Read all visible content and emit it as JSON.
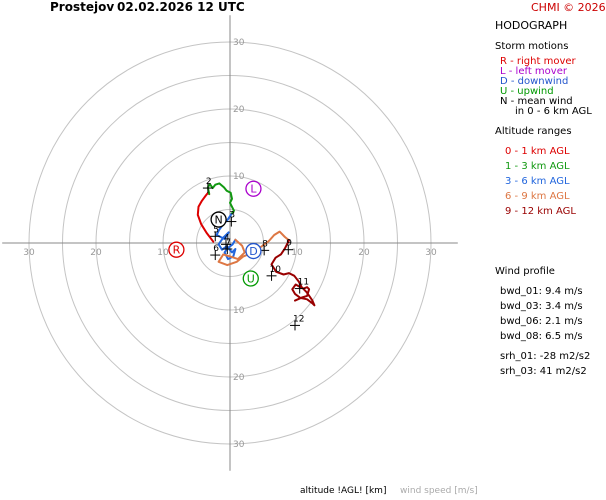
{
  "header": {
    "station": "Prostejov",
    "datetime": "02.02.2026 12 UTC",
    "credit": "CHMI © 2026",
    "credit_color": "#cc0000"
  },
  "panel": {
    "title": "HODOGRAPH",
    "storm_motions": {
      "heading": "Storm motions",
      "items": [
        {
          "text": "R - right mover",
          "color": "#dd0000"
        },
        {
          "text": "L - left mover",
          "color": "#aa00cc"
        },
        {
          "text": "D - downwind",
          "color": "#2255cc"
        },
        {
          "text": "U - upwind",
          "color": "#009900"
        },
        {
          "text": "N - mean wind",
          "color": "#000000"
        }
      ],
      "note": "in 0 - 6 km AGL"
    },
    "altitude": {
      "heading": "Altitude ranges",
      "items": [
        {
          "text": "0 - 1 km AGL",
          "color": "#dd0000"
        },
        {
          "text": "1 - 3 km AGL",
          "color": "#119911"
        },
        {
          "text": "3 - 6 km AGL",
          "color": "#2266dd"
        },
        {
          "text": "6 - 9 km AGL",
          "color": "#dd7744"
        },
        {
          "text": "9 - 12 km AGL",
          "color": "#990000"
        }
      ]
    },
    "wind_profile": {
      "heading": "Wind profile",
      "items": [
        "bwd_01: 9.4 m/s",
        "bwd_03: 3.4 m/s",
        "bwd_06: 2.1 m/s",
        "bwd_08: 6.5 m/s"
      ],
      "srh": [
        "srh_01: -28 m2/s2",
        "srh_03: 41 m2/s2"
      ]
    }
  },
  "footer": {
    "altitude_label": "altitude !AGL! [km]",
    "wind_label": "wind speed [m/s]",
    "wind_label_color": "#aaaaaa"
  },
  "chart_data": {
    "type": "line",
    "title": "HODOGRAPH",
    "xlabel": "",
    "ylabel": "",
    "xlim": [
      -34,
      34
    ],
    "ylim": [
      -34,
      34
    ],
    "rings": [
      5,
      10,
      15,
      20,
      25,
      30
    ],
    "ring_labels": [
      10,
      20,
      30
    ],
    "grid": true,
    "series": [
      {
        "name": "0 - 1 km AGL",
        "color": "#dd0000",
        "u": [
          -2.5,
          -3.5,
          -4.3,
          -4.8,
          -4.7,
          -4.2,
          -3.6,
          -3.2,
          -3.1
        ],
        "v": [
          0.2,
          1.5,
          2.8,
          4.2,
          5.4,
          6.3,
          7.1,
          7.6,
          7.3
        ]
      },
      {
        "name": "1 - 3 km AGL",
        "color": "#119911",
        "u": [
          -3.1,
          -3.3,
          -3.0,
          -2.6,
          -2.2,
          -1.6,
          -0.9,
          -0.5,
          0.1,
          0.3,
          0.0,
          0.3,
          0.6,
          0.2
        ],
        "v": [
          7.3,
          8.3,
          8.8,
          8.2,
          8.7,
          8.9,
          8.3,
          7.8,
          7.5,
          6.6,
          6.0,
          5.4,
          4.8,
          4.3
        ]
      },
      {
        "name": "3 - 6 km AGL",
        "color": "#2266dd",
        "u": [
          0.2,
          -0.4,
          -1.0,
          -1.6,
          -2.0,
          -0.8,
          -0.2,
          -1.0,
          -1.7,
          -1.2,
          -0.5,
          0.3,
          0.8,
          0.5,
          -0.3,
          -0.8,
          -0.4,
          0.4,
          0.8
        ],
        "v": [
          4.3,
          3.4,
          2.8,
          2.0,
          1.2,
          0.6,
          1.6,
          0.8,
          -0.2,
          -1.0,
          -0.5,
          -1.4,
          -0.9,
          -2.0,
          -2.4,
          -1.4,
          -0.8,
          -0.2,
          0.5
        ]
      },
      {
        "name": "6 - 9 km AGL",
        "color": "#dd7744",
        "u": [
          0.8,
          1.8,
          2.2,
          1.2,
          0.3,
          -1.0,
          -1.7,
          -0.4,
          1.0,
          2.0,
          3.2,
          4.6,
          5.8,
          6.6,
          7.4,
          8.2,
          8.8
        ],
        "v": [
          0.5,
          -0.4,
          -1.4,
          -2.4,
          -2.1,
          -1.7,
          -2.8,
          -3.3,
          -2.8,
          -2.0,
          -1.5,
          -0.6,
          0.3,
          1.2,
          1.7,
          0.9,
          0.4
        ]
      },
      {
        "name": "9 - 12 km AGL",
        "color": "#990000",
        "u": [
          8.8,
          8.2,
          7.6,
          6.8,
          6.2,
          6.9,
          8.0,
          8.8,
          9.6,
          10.3,
          10.7,
          11.4,
          11.9,
          12.3,
          12.6,
          12.3,
          11.5,
          10.5,
          9.7,
          9.3,
          9.8,
          10.5,
          11.0,
          11.5,
          11.8,
          11.5,
          10.8,
          9.7
        ],
        "v": [
          0.4,
          -0.8,
          -1.7,
          -2.2,
          -3.2,
          -4.3,
          -4.7,
          -4.5,
          -4.9,
          -5.8,
          -6.6,
          -7.3,
          -8.0,
          -8.6,
          -9.3,
          -9.0,
          -8.4,
          -8.2,
          -7.6,
          -6.9,
          -6.2,
          -6.6,
          -6.8,
          -6.6,
          -6.9,
          -7.9,
          -8.1,
          -8.6
        ]
      }
    ],
    "altitude_marks": [
      {
        "label": "2",
        "u": -3.3,
        "v": 8.2
      },
      {
        "label": "3",
        "u": 0.2,
        "v": 3.2
      },
      {
        "label": "4",
        "u": -0.6,
        "v": -0.2
      },
      {
        "label": "5",
        "u": -2.2,
        "v": 1.0
      },
      {
        "label": "6",
        "u": -2.2,
        "v": -1.8
      },
      {
        "label": "7",
        "u": -0.4,
        "v": -0.9
      },
      {
        "label": "8",
        "u": 5.1,
        "v": -1.1
      },
      {
        "label": "9",
        "u": 8.7,
        "v": -1.0
      },
      {
        "label": "10",
        "u": 6.2,
        "v": -4.9
      },
      {
        "label": "11",
        "u": 10.4,
        "v": -6.8
      },
      {
        "label": "12",
        "u": 9.7,
        "v": -12.3
      }
    ],
    "storm_points": [
      {
        "label": "N",
        "u": -1.7,
        "v": 3.5,
        "color": "#000000"
      },
      {
        "label": "L",
        "u": 3.5,
        "v": 8.1,
        "color": "#aa00cc"
      },
      {
        "label": "R",
        "u": -8.0,
        "v": -1.0,
        "color": "#dd0000"
      },
      {
        "label": "D",
        "u": 3.5,
        "v": -1.2,
        "color": "#2255cc"
      },
      {
        "label": "U",
        "u": 3.1,
        "v": -5.3,
        "color": "#009900"
      }
    ]
  }
}
